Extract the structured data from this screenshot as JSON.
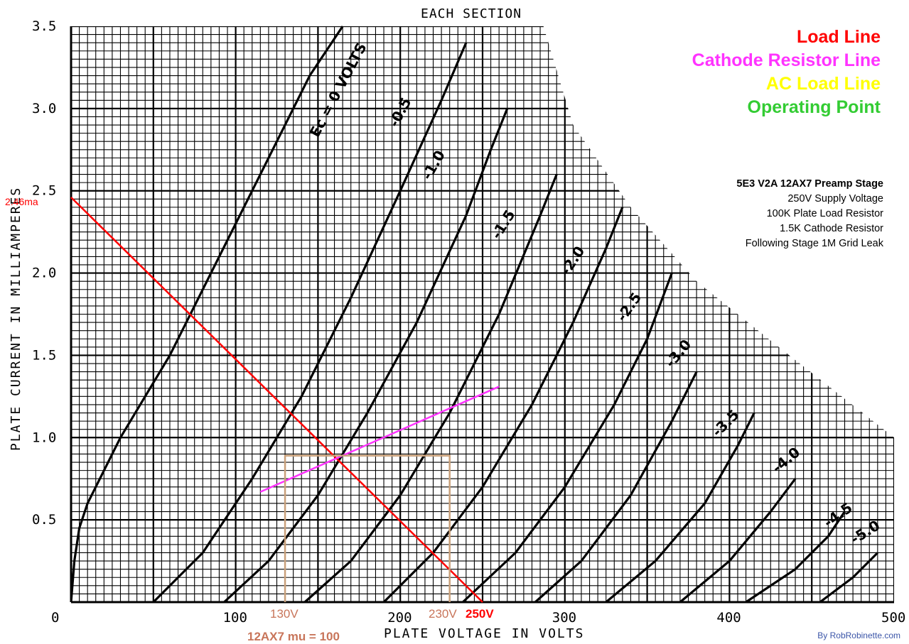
{
  "chart_data": {
    "type": "line",
    "subtitle": "EACH SECTION",
    "xlabel": "PLATE VOLTAGE IN VOLTS",
    "ylabel": "PLATE CURRENT IN MILLIAMPERES",
    "xlim": [
      0,
      500
    ],
    "ylim": [
      0,
      3.5
    ],
    "grid": true,
    "x_ticks": [
      "0",
      "100",
      "200",
      "300",
      "400",
      "500"
    ],
    "y_ticks": [
      "0.5",
      "1.0",
      "1.5",
      "2.0",
      "2.5",
      "3.0",
      "3.5"
    ],
    "series": [
      {
        "name": "Ec = 0 VOLTS",
        "x": [
          0,
          2,
          5,
          10,
          30,
          60,
          90,
          120,
          145,
          165
        ],
        "y": [
          0,
          0.25,
          0.45,
          0.6,
          1.0,
          1.5,
          2.1,
          2.7,
          3.2,
          3.5
        ]
      },
      {
        "name": "-0.5",
        "x": [
          50,
          80,
          110,
          140,
          170,
          200,
          225,
          240
        ],
        "y": [
          0,
          0.3,
          0.75,
          1.25,
          1.85,
          2.5,
          3.05,
          3.4
        ]
      },
      {
        "name": "-1.0",
        "x": [
          93,
          120,
          150,
          180,
          210,
          240,
          255,
          265
        ],
        "y": [
          0,
          0.25,
          0.65,
          1.15,
          1.7,
          2.35,
          2.75,
          3.0
        ]
      },
      {
        "name": "-1.5",
        "x": [
          142,
          170,
          200,
          230,
          260,
          285,
          295
        ],
        "y": [
          0,
          0.25,
          0.65,
          1.15,
          1.75,
          2.35,
          2.6
        ]
      },
      {
        "name": "-2.0",
        "x": [
          190,
          220,
          250,
          280,
          305,
          325,
          335
        ],
        "y": [
          0,
          0.3,
          0.7,
          1.2,
          1.7,
          2.15,
          2.4
        ]
      },
      {
        "name": "-2.5",
        "x": [
          238,
          270,
          300,
          330,
          350,
          365
        ],
        "y": [
          0,
          0.3,
          0.7,
          1.2,
          1.6,
          2.0
        ]
      },
      {
        "name": "-3.0",
        "x": [
          282,
          310,
          340,
          365,
          380
        ],
        "y": [
          0,
          0.25,
          0.65,
          1.1,
          1.4
        ]
      },
      {
        "name": "-3.5",
        "x": [
          325,
          355,
          385,
          405,
          415
        ],
        "y": [
          0,
          0.25,
          0.6,
          0.95,
          1.15
        ]
      },
      {
        "name": "-4.0",
        "x": [
          370,
          400,
          425,
          440
        ],
        "y": [
          0,
          0.25,
          0.55,
          0.75
        ]
      },
      {
        "name": "-4.5",
        "x": [
          410,
          440,
          460,
          470
        ],
        "y": [
          0,
          0.2,
          0.4,
          0.55
        ]
      },
      {
        "name": "-5.0",
        "x": [
          455,
          475,
          490
        ],
        "y": [
          0,
          0.15,
          0.3
        ]
      }
    ],
    "overlays": [
      {
        "name": "Load Line",
        "color": "#ff0000",
        "x": [
          0,
          250
        ],
        "y": [
          2.46,
          0
        ]
      },
      {
        "name": "Cathode Resistor Line",
        "color": "#ff33ff",
        "x": [
          115,
          260
        ],
        "y": [
          0.67,
          1.31
        ]
      },
      {
        "name": "Operating Point",
        "color": "#c9a07a",
        "x": [
          130,
          130,
          230,
          230
        ],
        "y": [
          0,
          0.89,
          0.89,
          0
        ]
      }
    ],
    "annotations": [
      {
        "text": "2.46ma",
        "x": 0,
        "y": 2.46,
        "color": "#ff0000"
      },
      {
        "text": "130V",
        "x": 130,
        "color": "#c8755a"
      },
      {
        "text": "230V",
        "x": 230,
        "color": "#c8755a"
      },
      {
        "text": "250V",
        "x": 250,
        "color": "#ff0000"
      },
      {
        "text": "12AX7 mu = 100",
        "color": "#c8755a"
      }
    ]
  },
  "legend": [
    {
      "label": "Load Line",
      "color": "#ff0000"
    },
    {
      "label": "Cathode Resistor Line",
      "color": "#ff33ff"
    },
    {
      "label": "AC Load Line",
      "color": "#ffff00"
    },
    {
      "label": "Operating Point",
      "color": "#33cc33"
    }
  ],
  "info": {
    "title": "5E3 V2A 12AX7 Preamp Stage",
    "lines": [
      "250V Supply Voltage",
      "100K Plate Load Resistor",
      "1.5K Cathode Resistor",
      "Following Stage 1M Grid Leak"
    ]
  },
  "credit": "By RobRobinette.com"
}
